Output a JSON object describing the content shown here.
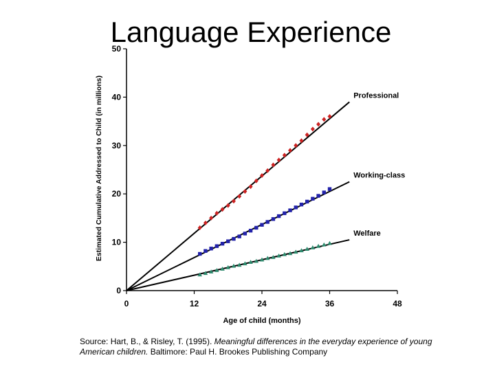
{
  "title": "Language Experience",
  "chart_data": {
    "type": "line",
    "title": "Language Experience",
    "xlabel": "Age of child (months)",
    "ylabel": "Estimated Cumulative Addressed to Child (in millions)",
    "xlim": [
      0,
      48
    ],
    "ylim": [
      0,
      50
    ],
    "xticks": [
      0,
      12,
      24,
      36,
      48
    ],
    "yticks": [
      0,
      10,
      20,
      30,
      40,
      50
    ],
    "grid": false,
    "legend": "inline-labels-right",
    "series": [
      {
        "name": "Professional",
        "color": "#cc2222",
        "marker": "diamond",
        "x": [
          13,
          14,
          15,
          16,
          17,
          18,
          19,
          20,
          21,
          22,
          23,
          24,
          25,
          26,
          27,
          28,
          29,
          30,
          31,
          32,
          33,
          34,
          35,
          36
        ],
        "y": [
          13.0,
          14.0,
          15.0,
          16.0,
          16.8,
          17.6,
          18.5,
          19.5,
          20.5,
          21.5,
          22.7,
          23.8,
          24.8,
          26.0,
          27.0,
          28.0,
          29.0,
          30.0,
          31.0,
          32.2,
          33.4,
          34.4,
          35.4,
          36.0
        ],
        "fit_line": {
          "x": [
            0,
            39.5
          ],
          "y": [
            0,
            39.0
          ]
        }
      },
      {
        "name": "Working-class",
        "color": "#2222aa",
        "marker": "square",
        "x": [
          13,
          14,
          15,
          16,
          17,
          18,
          19,
          20,
          21,
          22,
          23,
          24,
          25,
          26,
          27,
          28,
          29,
          30,
          31,
          32,
          33,
          34,
          35,
          36
        ],
        "y": [
          7.6,
          8.2,
          8.7,
          9.2,
          9.7,
          10.2,
          10.7,
          11.2,
          11.8,
          12.4,
          13.0,
          13.6,
          14.2,
          14.8,
          15.4,
          16.0,
          16.6,
          17.2,
          17.8,
          18.4,
          19.0,
          19.6,
          20.3,
          21.0
        ],
        "fit_line": {
          "x": [
            0,
            39.5
          ],
          "y": [
            0,
            22.5
          ]
        }
      },
      {
        "name": "Welfare",
        "color": "#2e8b6e",
        "marker": "triangle",
        "x": [
          13,
          14,
          15,
          16,
          17,
          18,
          19,
          20,
          21,
          22,
          23,
          24,
          25,
          26,
          27,
          28,
          29,
          30,
          31,
          32,
          33,
          34,
          35,
          36
        ],
        "y": [
          3.3,
          3.6,
          3.9,
          4.2,
          4.5,
          4.8,
          5.1,
          5.3,
          5.6,
          5.9,
          6.1,
          6.4,
          6.7,
          6.9,
          7.2,
          7.5,
          7.7,
          8.0,
          8.3,
          8.6,
          8.9,
          9.2,
          9.5,
          9.8
        ],
        "fit_line": {
          "x": [
            0,
            39.5
          ],
          "y": [
            0,
            10.5
          ]
        }
      }
    ]
  },
  "source": {
    "prefix": "Source:  Hart, B., & Risley, T. (1995).  ",
    "italic": "Meaningful differences in the everyday experience of young American children.",
    "suffix": "  Baltimore:  Paul H. Brookes Publishing Company"
  }
}
